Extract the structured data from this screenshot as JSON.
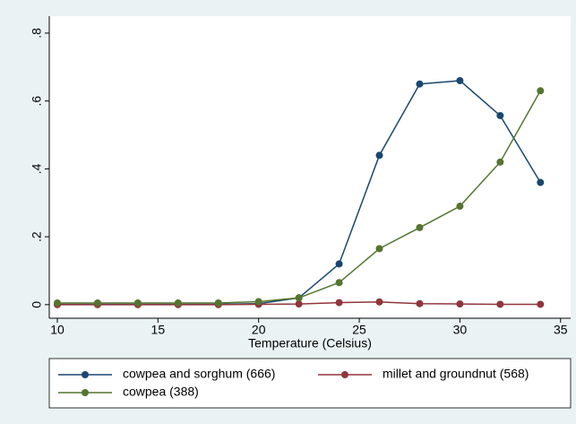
{
  "chart_data": {
    "type": "line",
    "x": [
      10,
      12,
      14,
      16,
      18,
      20,
      22,
      24,
      26,
      28,
      30,
      32,
      34
    ],
    "series": [
      {
        "name": "cowpea and sorghum (666)",
        "color": "#1a476f",
        "values": [
          0.001,
          0.001,
          0.001,
          0.001,
          0.001,
          0.003,
          0.02,
          0.12,
          0.44,
          0.65,
          0.66,
          0.557,
          0.36
        ]
      },
      {
        "name": "millet and groundnut (568)",
        "color": "#90353b",
        "values": [
          0,
          0,
          0,
          0,
          0,
          0.001,
          0.002,
          0.006,
          0.008,
          0.003,
          0.002,
          0.001,
          0.001
        ]
      },
      {
        "name": "cowpea (388)",
        "color": "#55752f",
        "values": [
          0.005,
          0.005,
          0.005,
          0.005,
          0.005,
          0.009,
          0.02,
          0.065,
          0.165,
          0.227,
          0.29,
          0.42,
          0.63
        ]
      }
    ],
    "x_label": "Temperature (Celsius)",
    "xlim": [
      9.6,
      35.5
    ],
    "xticks": [
      10,
      15,
      20,
      25,
      30,
      35
    ],
    "ylim": [
      -0.04,
      0.85
    ],
    "yticks": [
      0,
      {
        "value": 0.2,
        "label": ".2"
      },
      {
        "value": 0.4,
        "label": ".4"
      },
      {
        "value": 0.6,
        "label": ".6"
      },
      {
        "value": 0.8,
        "label": ".8"
      }
    ],
    "grid": false
  }
}
